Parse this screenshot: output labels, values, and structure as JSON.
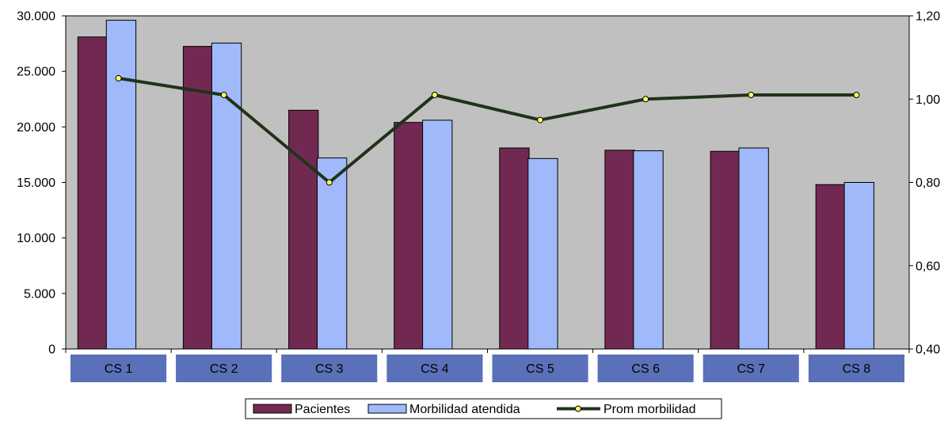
{
  "chart_data": {
    "type": "bar",
    "categories": [
      "CS 1",
      "CS 2",
      "CS 3",
      "CS 4",
      "CS 5",
      "CS 6",
      "CS 7",
      "CS 8"
    ],
    "series": [
      {
        "name": "Pacientes",
        "kind": "bar",
        "axis": "left",
        "color": "#722951",
        "values": [
          28100,
          27250,
          21500,
          20400,
          18100,
          17900,
          17800,
          14800
        ]
      },
      {
        "name": "Morbilidad atendida",
        "kind": "bar",
        "axis": "left",
        "color": "#9fb9fb",
        "values": [
          29600,
          27550,
          17200,
          20600,
          17150,
          17850,
          18100,
          15000
        ]
      },
      {
        "name": "Prom morbilidad",
        "kind": "line",
        "axis": "right",
        "color": "#1f331a",
        "marker_color": "#ffff66",
        "values": [
          1.05,
          1.01,
          0.8,
          1.01,
          0.95,
          1.0,
          1.01,
          1.01
        ]
      }
    ],
    "y_left": {
      "ylim": [
        0,
        30000
      ],
      "ticks": [
        0,
        5000,
        10000,
        15000,
        20000,
        25000,
        30000
      ],
      "tick_labels": [
        "0",
        "5.000",
        "10.000",
        "15.000",
        "20.000",
        "25.000",
        "30.000"
      ]
    },
    "y_right": {
      "ylim": [
        0.4,
        1.2
      ],
      "ticks": [
        0.4,
        0.6,
        0.8,
        1.0,
        1.2
      ],
      "tick_labels": [
        "0,40",
        "0,60",
        "0,80",
        "1,00",
        "1,20"
      ]
    },
    "title": "",
    "xlabel": "",
    "ylabel": "",
    "grid": false,
    "plot_background": "#c0c0c0",
    "category_label_box_color": "#5a70b8",
    "legend": {
      "position": "bottom",
      "entries": [
        "Pacientes",
        "Morbilidad atendida",
        "Prom morbilidad"
      ]
    }
  }
}
